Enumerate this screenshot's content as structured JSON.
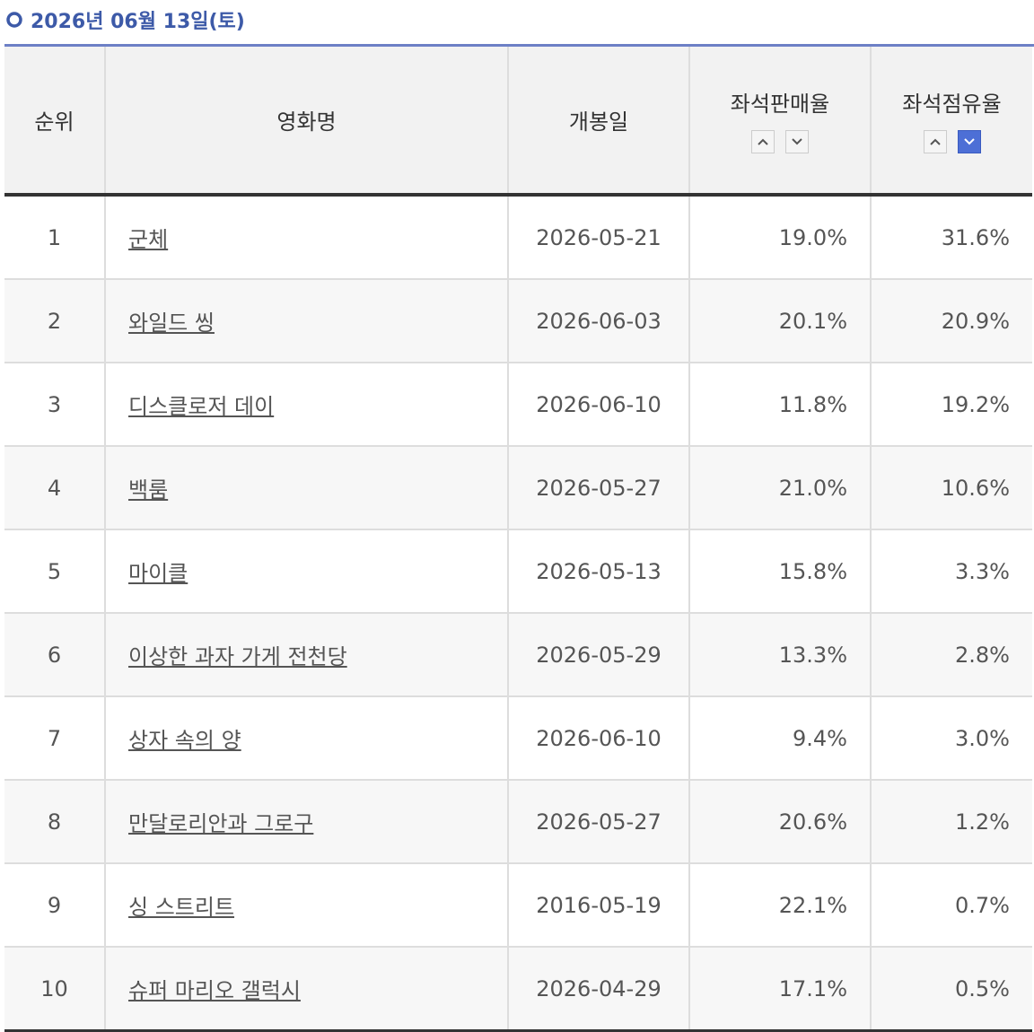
{
  "header": {
    "title": "2026년 06월 13일(토)"
  },
  "table": {
    "columns": [
      "순위",
      "영화명",
      "개봉일",
      "좌석판매율",
      "좌석점유율"
    ],
    "rows": [
      [
        "1",
        "군체",
        "2026-05-21",
        "19.0%",
        "31.6%"
      ],
      [
        "2",
        "와일드 씽",
        "2026-06-03",
        "20.1%",
        "20.9%"
      ],
      [
        "3",
        "디스클로저 데이",
        "2026-06-10",
        "11.8%",
        "19.2%"
      ],
      [
        "4",
        "백룸",
        "2026-05-27",
        "21.0%",
        "10.6%"
      ],
      [
        "5",
        "마이클",
        "2026-05-13",
        "15.8%",
        "3.3%"
      ],
      [
        "6",
        "이상한 과자 가게 전천당",
        "2026-05-29",
        "13.3%",
        "2.8%"
      ],
      [
        "7",
        "상자 속의 양",
        "2026-06-10",
        "9.4%",
        "3.0%"
      ],
      [
        "8",
        "만달로리안과 그로구",
        "2026-05-27",
        "20.6%",
        "1.2%"
      ],
      [
        "9",
        "싱 스트리트",
        "2016-05-19",
        "22.1%",
        "0.7%"
      ],
      [
        "10",
        "슈퍼 마리오 갤럭시",
        "2026-04-29",
        "17.1%",
        "0.5%"
      ]
    ]
  }
}
